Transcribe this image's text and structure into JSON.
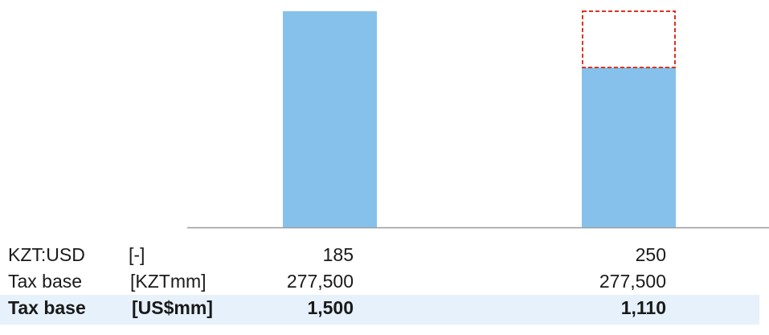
{
  "chart_data": {
    "type": "bar",
    "values": [
      1500,
      1110
    ],
    "value_labels": [
      "1,500",
      "1,110"
    ],
    "color": "#85c1ea",
    "outline_color": "#e0321e"
  },
  "table": {
    "rows": [
      {
        "label": "KZT:USD",
        "unit": "[-]",
        "values": [
          "185",
          "250"
        ]
      },
      {
        "label": "Tax base",
        "unit": "[KZTmm]",
        "values": [
          "277,500",
          "277,500"
        ]
      },
      {
        "label": "Tax base",
        "unit": "[US$mm]"
      }
    ]
  }
}
